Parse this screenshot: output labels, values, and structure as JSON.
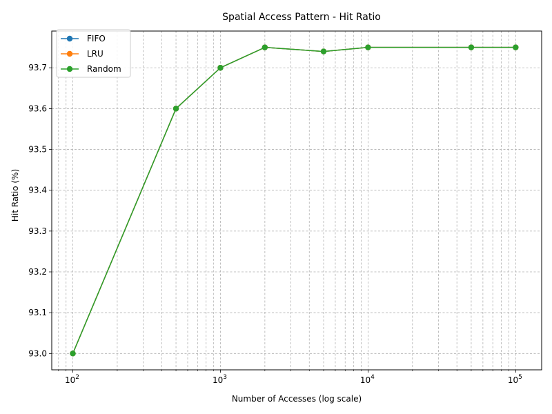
{
  "chart_data": {
    "type": "line",
    "title": "Spatial Access Pattern - Hit Ratio",
    "xlabel": "Number of Accesses (log scale)",
    "ylabel": "Hit Ratio (%)",
    "x_scale": "log",
    "x": [
      100,
      500,
      1000,
      2000,
      5000,
      10000,
      50000,
      100000
    ],
    "xlim": [
      72,
      150000
    ],
    "ylim": [
      92.96,
      93.79
    ],
    "x_ticks": [
      {
        "value": 100,
        "base": "10",
        "exp": "2"
      },
      {
        "value": 1000,
        "base": "10",
        "exp": "3"
      },
      {
        "value": 10000,
        "base": "10",
        "exp": "4"
      },
      {
        "value": 100000,
        "base": "10",
        "exp": "5"
      }
    ],
    "y_ticks": [
      {
        "value": 93.0,
        "label": "93.0"
      },
      {
        "value": 93.1,
        "label": "93.1"
      },
      {
        "value": 93.2,
        "label": "93.2"
      },
      {
        "value": 93.3,
        "label": "93.3"
      },
      {
        "value": 93.4,
        "label": "93.4"
      },
      {
        "value": 93.5,
        "label": "93.5"
      },
      {
        "value": 93.6,
        "label": "93.6"
      },
      {
        "value": 93.7,
        "label": "93.7"
      }
    ],
    "grid": true,
    "grid_minor": true,
    "legend_position": "top-left",
    "series": [
      {
        "name": "FIFO",
        "color": "#1f77b4",
        "values": [
          93.0,
          93.6,
          93.7,
          93.75,
          93.74,
          93.75,
          93.75,
          93.75
        ]
      },
      {
        "name": "LRU",
        "color": "#ff7f0e",
        "values": [
          93.0,
          93.6,
          93.7,
          93.75,
          93.74,
          93.75,
          93.75,
          93.75
        ]
      },
      {
        "name": "Random",
        "color": "#2ca02c",
        "values": [
          93.0,
          93.6,
          93.7,
          93.75,
          93.74,
          93.75,
          93.75,
          93.75
        ]
      }
    ]
  }
}
